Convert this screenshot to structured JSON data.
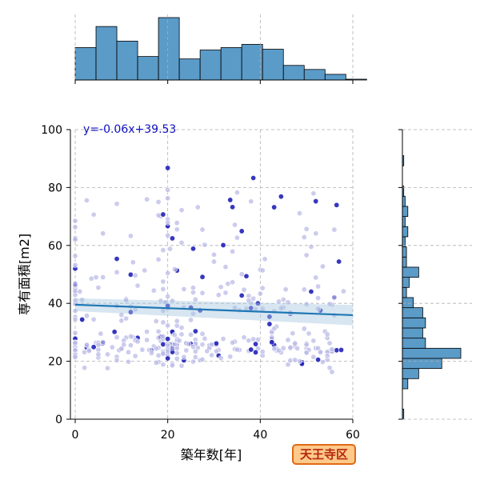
{
  "region_badge": "天王寺区",
  "chart_data": {
    "type": "scatter",
    "xlabel": "築年数[年]",
    "ylabel": "専有面積[m2]",
    "xlim": [
      0,
      60
    ],
    "ylim": [
      0,
      100
    ],
    "x_ticks": [
      0,
      20,
      40,
      60
    ],
    "y_ticks": [
      0,
      20,
      40,
      60,
      80,
      100
    ],
    "grid": true,
    "regression": {
      "label": "y=-0.06x+39.53",
      "slope": -0.06,
      "intercept": 39.53,
      "x_range": [
        0,
        60
      ]
    },
    "marginal_x_hist": {
      "bin_width": 4.5,
      "bin_start": 0,
      "counts": [
        40,
        66,
        48,
        29,
        77,
        26,
        37,
        40,
        44,
        38,
        18,
        13,
        7,
        1
      ]
    },
    "marginal_y_hist": {
      "bin_width": 3.5,
      "bin_start": 0,
      "counts": [
        1,
        0,
        0,
        4,
        12,
        29,
        43,
        17,
        15,
        17,
        15,
        8,
        3,
        5,
        12,
        3,
        3,
        2,
        4,
        2,
        4,
        2,
        1,
        0,
        0,
        1,
        0,
        0,
        0
      ]
    },
    "colors": {
      "points_light": "#b7b7e6",
      "points_dark": "#1414b4",
      "regression_line": "#1f77b4",
      "ci_band": "#a6c8e0",
      "hist_fill": "#5b9bc8",
      "label_text": "#1010c0"
    }
  }
}
